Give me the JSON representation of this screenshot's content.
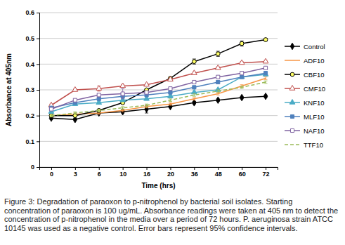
{
  "chart_data": {
    "type": "line",
    "x_label": "Time (hrs)",
    "y_label": "Absorbance at 405nm",
    "caption": "Figure 3: Degradation of paraoxon to p-nitrophenol by bacterial soil isolates. Starting concentration of paraoxon is 100 ug/mL. Absorbance readings were taken at 405 nm to detect the concentration of p-nitrophenol in the media over a period of 72 hours. P. aeruginosa strain ATCC 10145 was used as a negative control. Error bars represent 95% confidence intervals.",
    "categories": [
      "0",
      "3",
      "6",
      "10",
      "16",
      "20",
      "36",
      "48",
      "60",
      "72"
    ],
    "ylim": [
      0,
      0.6
    ],
    "yticks": [
      0,
      0.1,
      0.2,
      0.3,
      0.4,
      0.5,
      0.6
    ],
    "grid": true,
    "legend": "right",
    "series": [
      {
        "name": "Control",
        "color": "#000000",
        "marker": "diamond",
        "line_style": "solid",
        "values": [
          0.19,
          0.185,
          0.21,
          0.215,
          0.225,
          0.235,
          0.25,
          0.26,
          0.27,
          0.275
        ],
        "errors": [
          0.005,
          0.005,
          0.005,
          0.005,
          0.015,
          0.005,
          0.005,
          0.005,
          0.005,
          0.005
        ]
      },
      {
        "name": "ADF10",
        "color": "#f79646",
        "marker": "none",
        "line_style": "solid",
        "values": [
          0.2,
          0.205,
          0.21,
          0.22,
          0.235,
          0.245,
          0.265,
          0.285,
          0.315,
          0.345
        ],
        "errors": [
          0.005,
          0.005,
          0.005,
          0.005,
          0.005,
          0.005,
          0.005,
          0.005,
          0.005,
          0.005
        ]
      },
      {
        "name": "CBF10",
        "color": "#000000",
        "marker": "circle",
        "line_style": "solid",
        "values": [
          0.2,
          0.2,
          0.22,
          0.25,
          0.3,
          0.345,
          0.41,
          0.44,
          0.48,
          0.495
        ],
        "errors": [
          0.005,
          0.005,
          0.005,
          0.005,
          0.005,
          0.005,
          0.01,
          0.01,
          0.01,
          0.005
        ]
      },
      {
        "name": "CMF10",
        "color": "#c0504d",
        "marker": "triangle-open",
        "line_style": "solid",
        "values": [
          0.24,
          0.3,
          0.305,
          0.315,
          0.32,
          0.34,
          0.365,
          0.385,
          0.405,
          0.41
        ],
        "errors": [
          0.005,
          0.005,
          0.01,
          0.005,
          0.005,
          0.005,
          0.005,
          0.005,
          0.005,
          0.005
        ]
      },
      {
        "name": "KNF10",
        "color": "#4bacc6",
        "marker": "triangle",
        "line_style": "solid",
        "values": [
          0.215,
          0.245,
          0.25,
          0.26,
          0.265,
          0.275,
          0.29,
          0.3,
          0.35,
          0.36
        ],
        "errors": [
          0.005,
          0.005,
          0.005,
          0.005,
          0.005,
          0.005,
          0.005,
          0.005,
          0.005,
          0.005
        ]
      },
      {
        "name": "MLF10",
        "color": "#4f81bd",
        "marker": "square",
        "line_style": "solid",
        "values": [
          0.23,
          0.25,
          0.265,
          0.275,
          0.28,
          0.29,
          0.31,
          0.33,
          0.35,
          0.365
        ],
        "errors": [
          0.005,
          0.005,
          0.005,
          0.005,
          0.005,
          0.005,
          0.005,
          0.005,
          0.005,
          0.005
        ]
      },
      {
        "name": "NAF10",
        "color": "#8064a2",
        "marker": "square-open",
        "line_style": "solid",
        "values": [
          0.225,
          0.26,
          0.28,
          0.285,
          0.29,
          0.305,
          0.33,
          0.35,
          0.365,
          0.385
        ],
        "errors": [
          0.005,
          0.005,
          0.005,
          0.02,
          0.005,
          0.005,
          0.005,
          0.005,
          0.005,
          0.005
        ]
      },
      {
        "name": "TTF10",
        "color": "#9bbb59",
        "marker": "none",
        "line_style": "dashed",
        "values": [
          0.2,
          0.21,
          0.22,
          0.23,
          0.24,
          0.26,
          0.28,
          0.295,
          0.31,
          0.33
        ],
        "errors": [
          0.005,
          0.005,
          0.005,
          0.005,
          0.005,
          0.005,
          0.005,
          0.005,
          0.005,
          0.005
        ]
      }
    ]
  }
}
